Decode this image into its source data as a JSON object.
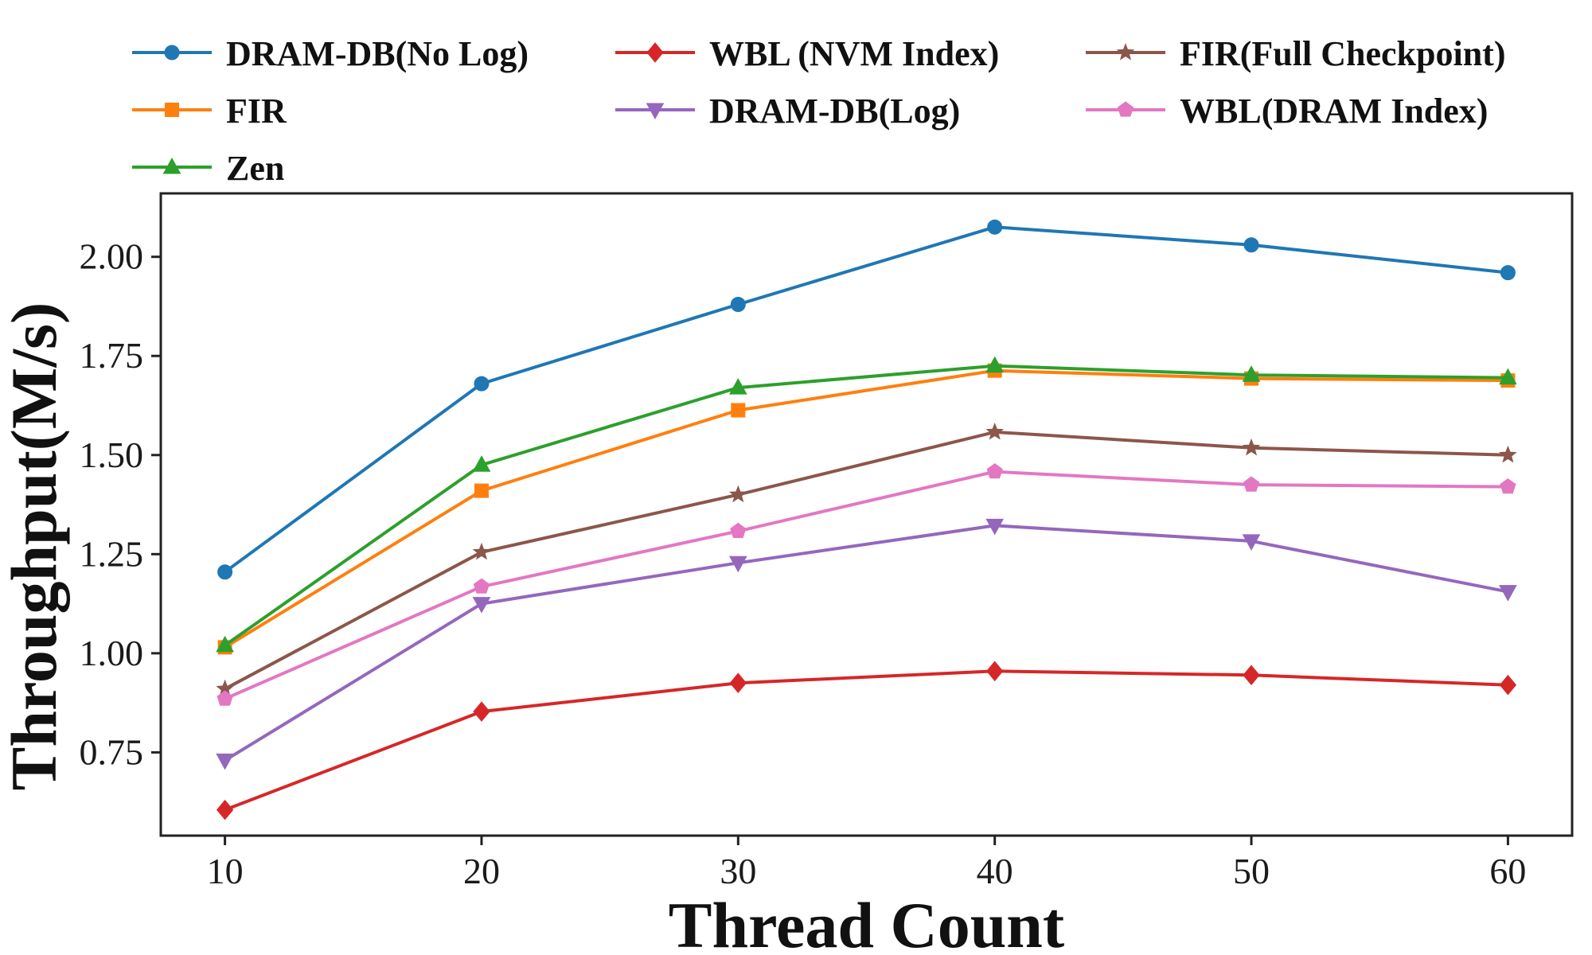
{
  "chart_data": {
    "type": "line",
    "title": "",
    "xlabel": "Thread Count",
    "ylabel": "Throughput(M/s)",
    "x": [
      10,
      20,
      30,
      40,
      50,
      60
    ],
    "x_tick_labels": [
      "10",
      "20",
      "30",
      "40",
      "50",
      "60"
    ],
    "y_ticks": [
      0.75,
      1.0,
      1.25,
      1.5,
      1.75,
      2.0
    ],
    "y_tick_labels": [
      "0.75",
      "1.00",
      "1.25",
      "1.50",
      "1.75",
      "2.00"
    ],
    "xlim": [
      7.5,
      62.5
    ],
    "ylim": [
      0.54,
      2.16
    ],
    "grid": false,
    "legend_position": "top",
    "series": [
      {
        "name": "DRAM-DB(No Log)",
        "color": "#1f77b4",
        "marker": "circle",
        "values": [
          1.205,
          1.68,
          1.88,
          2.075,
          2.03,
          1.96
        ]
      },
      {
        "name": "FIR",
        "color": "#ff7f0e",
        "marker": "square",
        "values": [
          1.015,
          1.41,
          1.613,
          1.713,
          1.693,
          1.688
        ]
      },
      {
        "name": "Zen",
        "color": "#2ca02c",
        "marker": "triangle-up",
        "values": [
          1.02,
          1.475,
          1.67,
          1.725,
          1.702,
          1.695
        ]
      },
      {
        "name": "WBL (NVM Index)",
        "color": "#d62728",
        "marker": "diamond",
        "values": [
          0.605,
          0.853,
          0.925,
          0.955,
          0.945,
          0.92
        ]
      },
      {
        "name": "DRAM-DB(Log)",
        "color": "#9467bd",
        "marker": "triangle-down",
        "values": [
          0.73,
          1.125,
          1.228,
          1.322,
          1.283,
          1.155
        ]
      },
      {
        "name": "FIR(Full Checkpoint)",
        "color": "#8c564b",
        "marker": "star",
        "values": [
          0.91,
          1.255,
          1.4,
          1.558,
          1.518,
          1.5
        ]
      },
      {
        "name": "WBL(DRAM Index)",
        "color": "#e377c2",
        "marker": "pentagon",
        "values": [
          0.885,
          1.168,
          1.308,
          1.458,
          1.425,
          1.42
        ]
      }
    ]
  }
}
